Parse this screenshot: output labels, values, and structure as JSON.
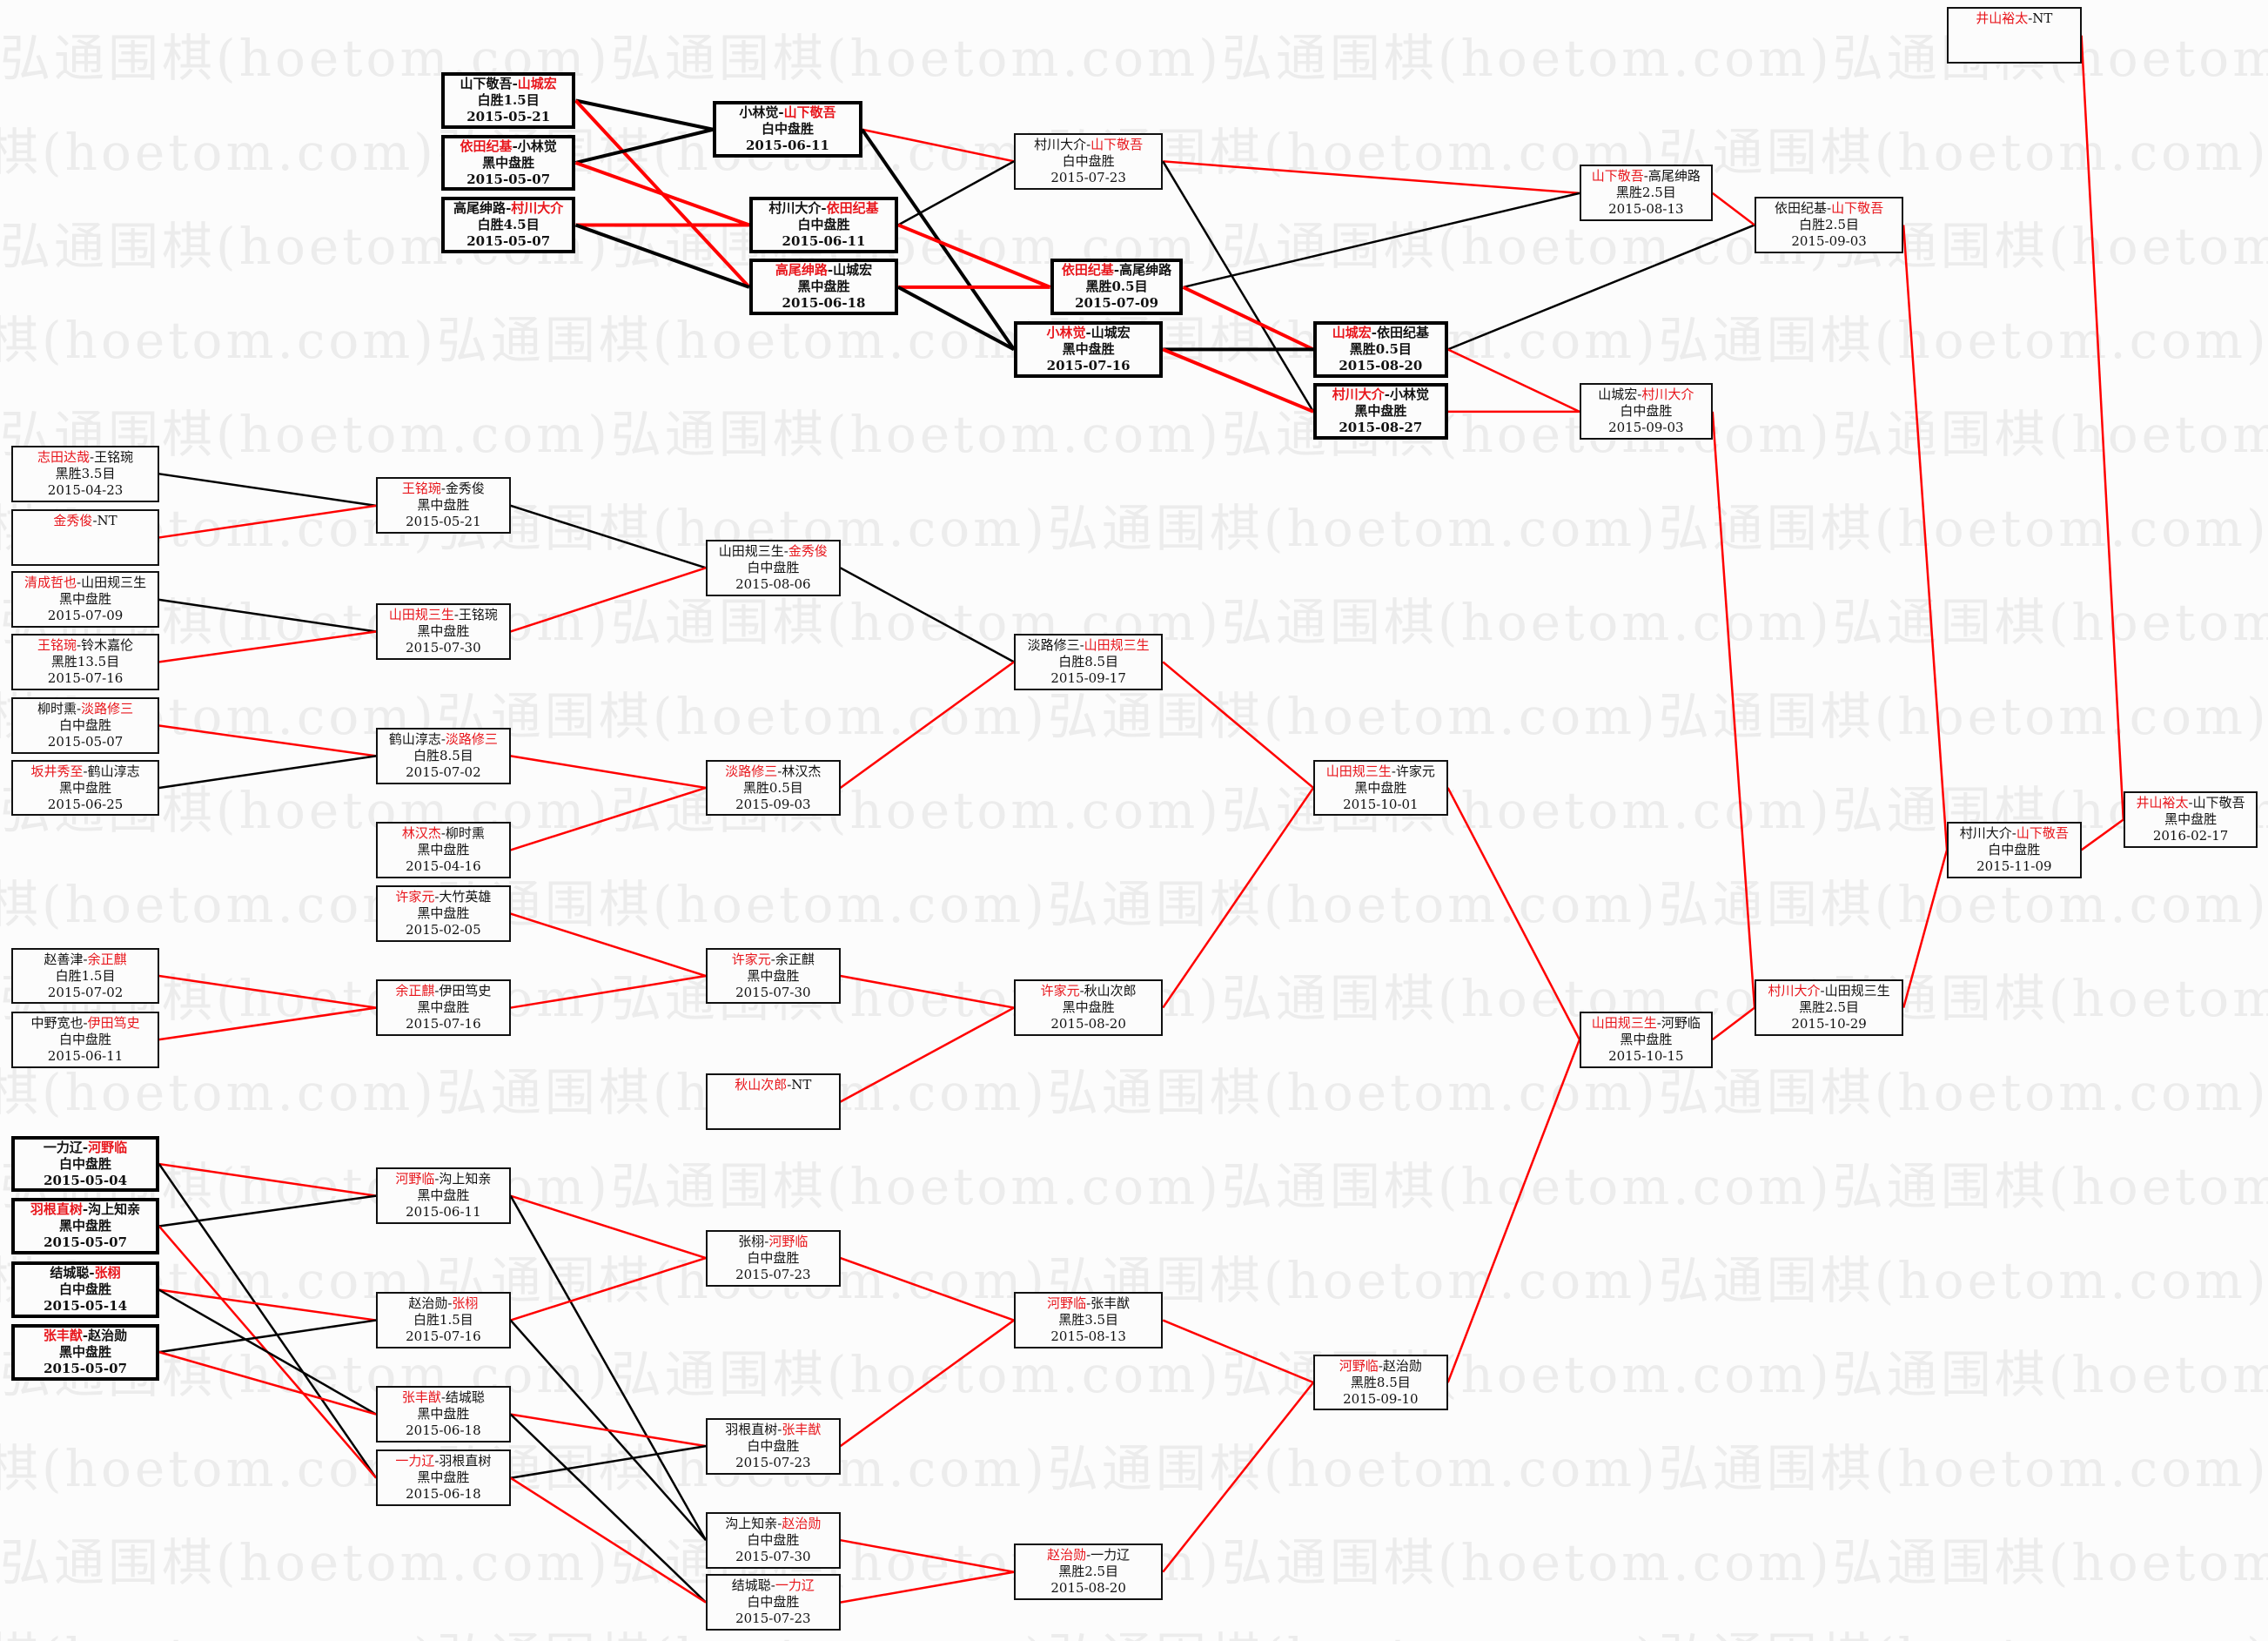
{
  "watermark": "弘通围棋(hoetom.com)",
  "colors": {
    "winner": "#e8161c",
    "winner_line": "#ff0000",
    "loser_line": "#000000"
  },
  "matches": [
    {
      "id": "T1",
      "p1": "山下敬吾",
      "p2": "山城宏",
      "win": 2,
      "res": "白胜1.5目",
      "date": "2015-05-21"
    },
    {
      "id": "T2",
      "p1": "依田纪基",
      "p2": "小林觉",
      "win": 1,
      "res": "黑中盘胜",
      "date": "2015-05-07"
    },
    {
      "id": "T3",
      "p1": "高尾绅路",
      "p2": "村川大介",
      "win": 2,
      "res": "白胜4.5目",
      "date": "2015-05-07"
    },
    {
      "id": "T4",
      "p1": "小林觉",
      "p2": "山下敬吾",
      "win": 2,
      "res": "白中盘胜",
      "date": "2015-06-11"
    },
    {
      "id": "T5",
      "p1": "村川大介",
      "p2": "依田纪基",
      "win": 2,
      "res": "白中盘胜",
      "date": "2015-06-11"
    },
    {
      "id": "T6",
      "p1": "高尾绅路",
      "p2": "山城宏",
      "win": 1,
      "res": "黑中盘胜",
      "date": "2015-06-18"
    },
    {
      "id": "T7",
      "p1": "村川大介",
      "p2": "山下敬吾",
      "win": 2,
      "res": "白中盘胜",
      "date": "2015-07-23"
    },
    {
      "id": "T8",
      "p1": "依田纪基",
      "p2": "高尾绅路",
      "win": 1,
      "res": "黑胜0.5目",
      "date": "2015-07-09"
    },
    {
      "id": "T9",
      "p1": "小林觉",
      "p2": "山城宏",
      "win": 1,
      "res": "黑中盘胜",
      "date": "2015-07-16"
    },
    {
      "id": "T10",
      "p1": "山城宏",
      "p2": "依田纪基",
      "win": 1,
      "res": "黑胜0.5目",
      "date": "2015-08-20"
    },
    {
      "id": "T11",
      "p1": "村川大介",
      "p2": "小林觉",
      "win": 1,
      "res": "黑中盘胜",
      "date": "2015-08-27"
    },
    {
      "id": "T12",
      "p1": "山下敬吾",
      "p2": "高尾绅路",
      "win": 1,
      "res": "黑胜2.5目",
      "date": "2015-08-13"
    },
    {
      "id": "T13",
      "p1": "山城宏",
      "p2": "村川大介",
      "win": 2,
      "res": "白中盘胜",
      "date": "2015-09-03"
    },
    {
      "id": "T14",
      "p1": "依田纪基",
      "p2": "山下敬吾",
      "win": 2,
      "res": "白胜2.5目",
      "date": "2015-09-03"
    },
    {
      "id": "T15",
      "p1": "井山裕太",
      "p2": "NT",
      "win": 1,
      "res": "",
      "date": ""
    },
    {
      "id": "F",
      "p1": "井山裕太",
      "p2": "山下敬吾",
      "win": 1,
      "res": "黑中盘胜",
      "date": "2016-02-17"
    },
    {
      "id": "T17",
      "p1": "村川大介",
      "p2": "山下敬吾",
      "win": 2,
      "res": "白中盘胜",
      "date": "2015-11-09"
    },
    {
      "id": "T16",
      "p1": "村川大介",
      "p2": "山田规三生",
      "win": 1,
      "res": "黑胜2.5目",
      "date": "2015-10-29"
    },
    {
      "id": "E1",
      "p1": "山田规三生",
      "p2": "河野临",
      "win": 1,
      "res": "黑中盘胜",
      "date": "2015-10-15"
    },
    {
      "id": "D1",
      "p1": "山田规三生",
      "p2": "许家元",
      "win": 1,
      "res": "黑中盘胜",
      "date": "2015-10-01"
    },
    {
      "id": "D2",
      "p1": "河野临",
      "p2": "赵治勋",
      "win": 1,
      "res": "黑胜8.5目",
      "date": "2015-09-10"
    },
    {
      "id": "C1",
      "p1": "淡路修三",
      "p2": "山田规三生",
      "win": 2,
      "res": "白胜8.5目",
      "date": "2015-09-17"
    },
    {
      "id": "C2",
      "p1": "许家元",
      "p2": "秋山次郎",
      "win": 1,
      "res": "黑中盘胜",
      "date": "2015-08-20"
    },
    {
      "id": "C3",
      "p1": "河野临",
      "p2": "张丰猷",
      "win": 1,
      "res": "黑胜3.5目",
      "date": "2015-08-13"
    },
    {
      "id": "C4",
      "p1": "赵治勋",
      "p2": "一力辽",
      "win": 1,
      "res": "黑胜2.5目",
      "date": "2015-08-20"
    },
    {
      "id": "B1",
      "p1": "山田规三生",
      "p2": "金秀俊",
      "win": 2,
      "res": "白中盘胜",
      "date": "2015-08-06"
    },
    {
      "id": "B2",
      "p1": "淡路修三",
      "p2": "林汉杰",
      "win": 1,
      "res": "黑胜0.5目",
      "date": "2015-09-03"
    },
    {
      "id": "B3",
      "p1": "许家元",
      "p2": "余正麒",
      "win": 1,
      "res": "黑中盘胜",
      "date": "2015-07-30"
    },
    {
      "id": "B4",
      "p1": "秋山次郎",
      "p2": "NT",
      "win": 1,
      "res": "",
      "date": ""
    },
    {
      "id": "B5",
      "p1": "张栩",
      "p2": "河野临",
      "win": 2,
      "res": "白中盘胜",
      "date": "2015-07-23"
    },
    {
      "id": "B6",
      "p1": "羽根直树",
      "p2": "张丰猷",
      "win": 2,
      "res": "白中盘胜",
      "date": "2015-07-23"
    },
    {
      "id": "B7",
      "p1": "沟上知亲",
      "p2": "赵治勋",
      "win": 2,
      "res": "白中盘胜",
      "date": "2015-07-30"
    },
    {
      "id": "B8",
      "p1": "结城聪",
      "p2": "一力辽",
      "win": 2,
      "res": "白中盘胜",
      "date": "2015-07-23"
    },
    {
      "id": "A1",
      "p1": "王铭琬",
      "p2": "金秀俊",
      "win": 1,
      "res": "黑中盘胜",
      "date": "2015-05-21"
    },
    {
      "id": "A2",
      "p1": "山田规三生",
      "p2": "王铭琬",
      "win": 1,
      "res": "黑中盘胜",
      "date": "2015-07-30"
    },
    {
      "id": "A3",
      "p1": "鹤山淳志",
      "p2": "淡路修三",
      "win": 2,
      "res": "白胜8.5目",
      "date": "2015-07-02"
    },
    {
      "id": "A4",
      "p1": "林汉杰",
      "p2": "柳时熏",
      "win": 1,
      "res": "黑中盘胜",
      "date": "2015-04-16"
    },
    {
      "id": "A5",
      "p1": "许家元",
      "p2": "大竹英雄",
      "win": 1,
      "res": "黑中盘胜",
      "date": "2015-02-05"
    },
    {
      "id": "A6",
      "p1": "余正麒",
      "p2": "伊田笃史",
      "win": 1,
      "res": "黑中盘胜",
      "date": "2015-07-16"
    },
    {
      "id": "A7",
      "p1": "河野临",
      "p2": "沟上知亲",
      "win": 1,
      "res": "黑中盘胜",
      "date": "2015-06-11"
    },
    {
      "id": "A8",
      "p1": "赵治勋",
      "p2": "张栩",
      "win": 2,
      "res": "白胜1.5目",
      "date": "2015-07-16"
    },
    {
      "id": "A9",
      "p1": "张丰猷",
      "p2": "结城聪",
      "win": 1,
      "res": "黑中盘胜",
      "date": "2015-06-18"
    },
    {
      "id": "A10",
      "p1": "一力辽",
      "p2": "羽根直树",
      "win": 1,
      "res": "黑中盘胜",
      "date": "2015-06-18"
    },
    {
      "id": "L1",
      "p1": "志田达哉",
      "p2": "王铭琬",
      "win": 1,
      "res": "黑胜3.5目",
      "date": "2015-04-23"
    },
    {
      "id": "L2",
      "p1": "金秀俊",
      "p2": "NT",
      "win": 1,
      "res": "",
      "date": ""
    },
    {
      "id": "L3",
      "p1": "清成哲也",
      "p2": "山田规三生",
      "win": 1,
      "res": "黑中盘胜",
      "date": "2015-07-09"
    },
    {
      "id": "L4",
      "p1": "王铭琬",
      "p2": "铃木嘉伦",
      "win": 1,
      "res": "黑胜13.5目",
      "date": "2015-07-16"
    },
    {
      "id": "L5",
      "p1": "柳时熏",
      "p2": "淡路修三",
      "win": 2,
      "res": "白中盘胜",
      "date": "2015-05-07"
    },
    {
      "id": "L6",
      "p1": "坂井秀至",
      "p2": "鹤山淳志",
      "win": 1,
      "res": "黑中盘胜",
      "date": "2015-06-25"
    },
    {
      "id": "L7",
      "p1": "赵善津",
      "p2": "余正麒",
      "win": 2,
      "res": "白胜1.5目",
      "date": "2015-07-02"
    },
    {
      "id": "L8",
      "p1": "中野宽也",
      "p2": "伊田笃史",
      "win": 2,
      "res": "白中盘胜",
      "date": "2015-06-11"
    },
    {
      "id": "L9",
      "p1": "一力辽",
      "p2": "河野临",
      "win": 2,
      "res": "白中盘胜",
      "date": "2015-05-04"
    },
    {
      "id": "L10",
      "p1": "羽根直树",
      "p2": "沟上知亲",
      "win": 1,
      "res": "黑中盘胜",
      "date": "2015-05-07"
    },
    {
      "id": "L11",
      "p1": "结城聪",
      "p2": "张栩",
      "win": 2,
      "res": "白中盘胜",
      "date": "2015-05-14"
    },
    {
      "id": "L12",
      "p1": "张丰猷",
      "p2": "赵治勋",
      "win": 1,
      "res": "黑中盘胜",
      "date": "2015-05-07"
    }
  ],
  "links": [
    [
      "T1",
      "T4",
      "black"
    ],
    [
      "T1",
      "T6",
      "red"
    ],
    [
      "T2",
      "T4",
      "black"
    ],
    [
      "T2",
      "T5",
      "red"
    ],
    [
      "T3",
      "T5",
      "red"
    ],
    [
      "T3",
      "T6",
      "black"
    ],
    [
      "T4",
      "T7",
      "red"
    ],
    [
      "T4",
      "T9",
      "black"
    ],
    [
      "T5",
      "T7",
      "black"
    ],
    [
      "T5",
      "T8",
      "red"
    ],
    [
      "T6",
      "T8",
      "red"
    ],
    [
      "T6",
      "T9",
      "black"
    ],
    [
      "T7",
      "T12",
      "red"
    ],
    [
      "T7",
      "T11",
      "black"
    ],
    [
      "T8",
      "T12",
      "black"
    ],
    [
      "T8",
      "T10",
      "red"
    ],
    [
      "T9",
      "T10",
      "black"
    ],
    [
      "T9",
      "T11",
      "red"
    ],
    [
      "T10",
      "T14",
      "black"
    ],
    [
      "T10",
      "T13",
      "red"
    ],
    [
      "T11",
      "T13",
      "red"
    ],
    [
      "T12",
      "T14",
      "red"
    ],
    [
      "T14",
      "T17",
      "red"
    ],
    [
      "T13",
      "T16",
      "red"
    ],
    [
      "T15",
      "F",
      "red"
    ],
    [
      "T17",
      "F",
      "red"
    ],
    [
      "T16",
      "T17",
      "red"
    ],
    [
      "E1",
      "T16",
      "red"
    ],
    [
      "L1",
      "A1",
      "black"
    ],
    [
      "L2",
      "A1",
      "red"
    ],
    [
      "L3",
      "A2",
      "black"
    ],
    [
      "L4",
      "A2",
      "red"
    ],
    [
      "L5",
      "A3",
      "red"
    ],
    [
      "L6",
      "A3",
      "black"
    ],
    [
      "L7",
      "A6",
      "red"
    ],
    [
      "L8",
      "A6",
      "red"
    ],
    [
      "A1",
      "B1",
      "black"
    ],
    [
      "A2",
      "B1",
      "red"
    ],
    [
      "A3",
      "B2",
      "red"
    ],
    [
      "A4",
      "B2",
      "red"
    ],
    [
      "A5",
      "B3",
      "red"
    ],
    [
      "A6",
      "B3",
      "red"
    ],
    [
      "B1",
      "C1",
      "black"
    ],
    [
      "B2",
      "C1",
      "red"
    ],
    [
      "B3",
      "C2",
      "red"
    ],
    [
      "B4",
      "C2",
      "red"
    ],
    [
      "C1",
      "D1",
      "red"
    ],
    [
      "C2",
      "D1",
      "red"
    ],
    [
      "D1",
      "E1",
      "red"
    ],
    [
      "D2",
      "E1",
      "red"
    ],
    [
      "L9",
      "A7",
      "red"
    ],
    [
      "L9",
      "A10",
      "black"
    ],
    [
      "L10",
      "A7",
      "black"
    ],
    [
      "L10",
      "A10",
      "red"
    ],
    [
      "L11",
      "A8",
      "red"
    ],
    [
      "L11",
      "A9",
      "black"
    ],
    [
      "L12",
      "A8",
      "black"
    ],
    [
      "L12",
      "A9",
      "red"
    ],
    [
      "A7",
      "B5",
      "red"
    ],
    [
      "A7",
      "B7",
      "black"
    ],
    [
      "A8",
      "B5",
      "red"
    ],
    [
      "A8",
      "B7",
      "black"
    ],
    [
      "A9",
      "B6",
      "red"
    ],
    [
      "A9",
      "B8",
      "black"
    ],
    [
      "A10",
      "B6",
      "black"
    ],
    [
      "A10",
      "B8",
      "red"
    ],
    [
      "B5",
      "C3",
      "red"
    ],
    [
      "B6",
      "C3",
      "red"
    ],
    [
      "B7",
      "C4",
      "red"
    ],
    [
      "B8",
      "C4",
      "red"
    ],
    [
      "C3",
      "D2",
      "red"
    ],
    [
      "C4",
      "D2",
      "red"
    ]
  ]
}
